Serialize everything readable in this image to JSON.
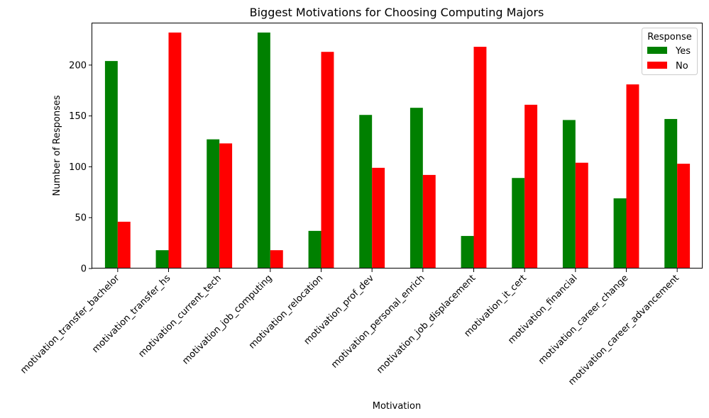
{
  "chart_data": {
    "type": "bar",
    "title": "Biggest Motivations for Choosing Computing Majors",
    "xlabel": "Motivation",
    "ylabel": "Number of Responses",
    "ylim": [
      0,
      241
    ],
    "yticks": [
      0,
      50,
      100,
      150,
      200
    ],
    "grid": false,
    "legend": {
      "title": "Response",
      "placement": "top-right"
    },
    "categories": [
      "motivation_transfer_bachelor",
      "motivation_transfer_hs",
      "motivation_current_tech",
      "motivation_job_computing",
      "motivation_relocation",
      "motivation_prof_dev",
      "motivation_personal_enrich",
      "motivation_job_displacement",
      "motivation_it_cert",
      "motivation_financial",
      "motivation_career_change",
      "motivation_career_advancement"
    ],
    "series": [
      {
        "name": "Yes",
        "color": "#008000",
        "values": [
          204,
          18,
          127,
          232,
          37,
          151,
          158,
          32,
          89,
          146,
          69,
          147
        ]
      },
      {
        "name": "No",
        "color": "#ff0000",
        "values": [
          46,
          232,
          123,
          18,
          213,
          99,
          92,
          218,
          161,
          104,
          181,
          103
        ]
      }
    ]
  }
}
